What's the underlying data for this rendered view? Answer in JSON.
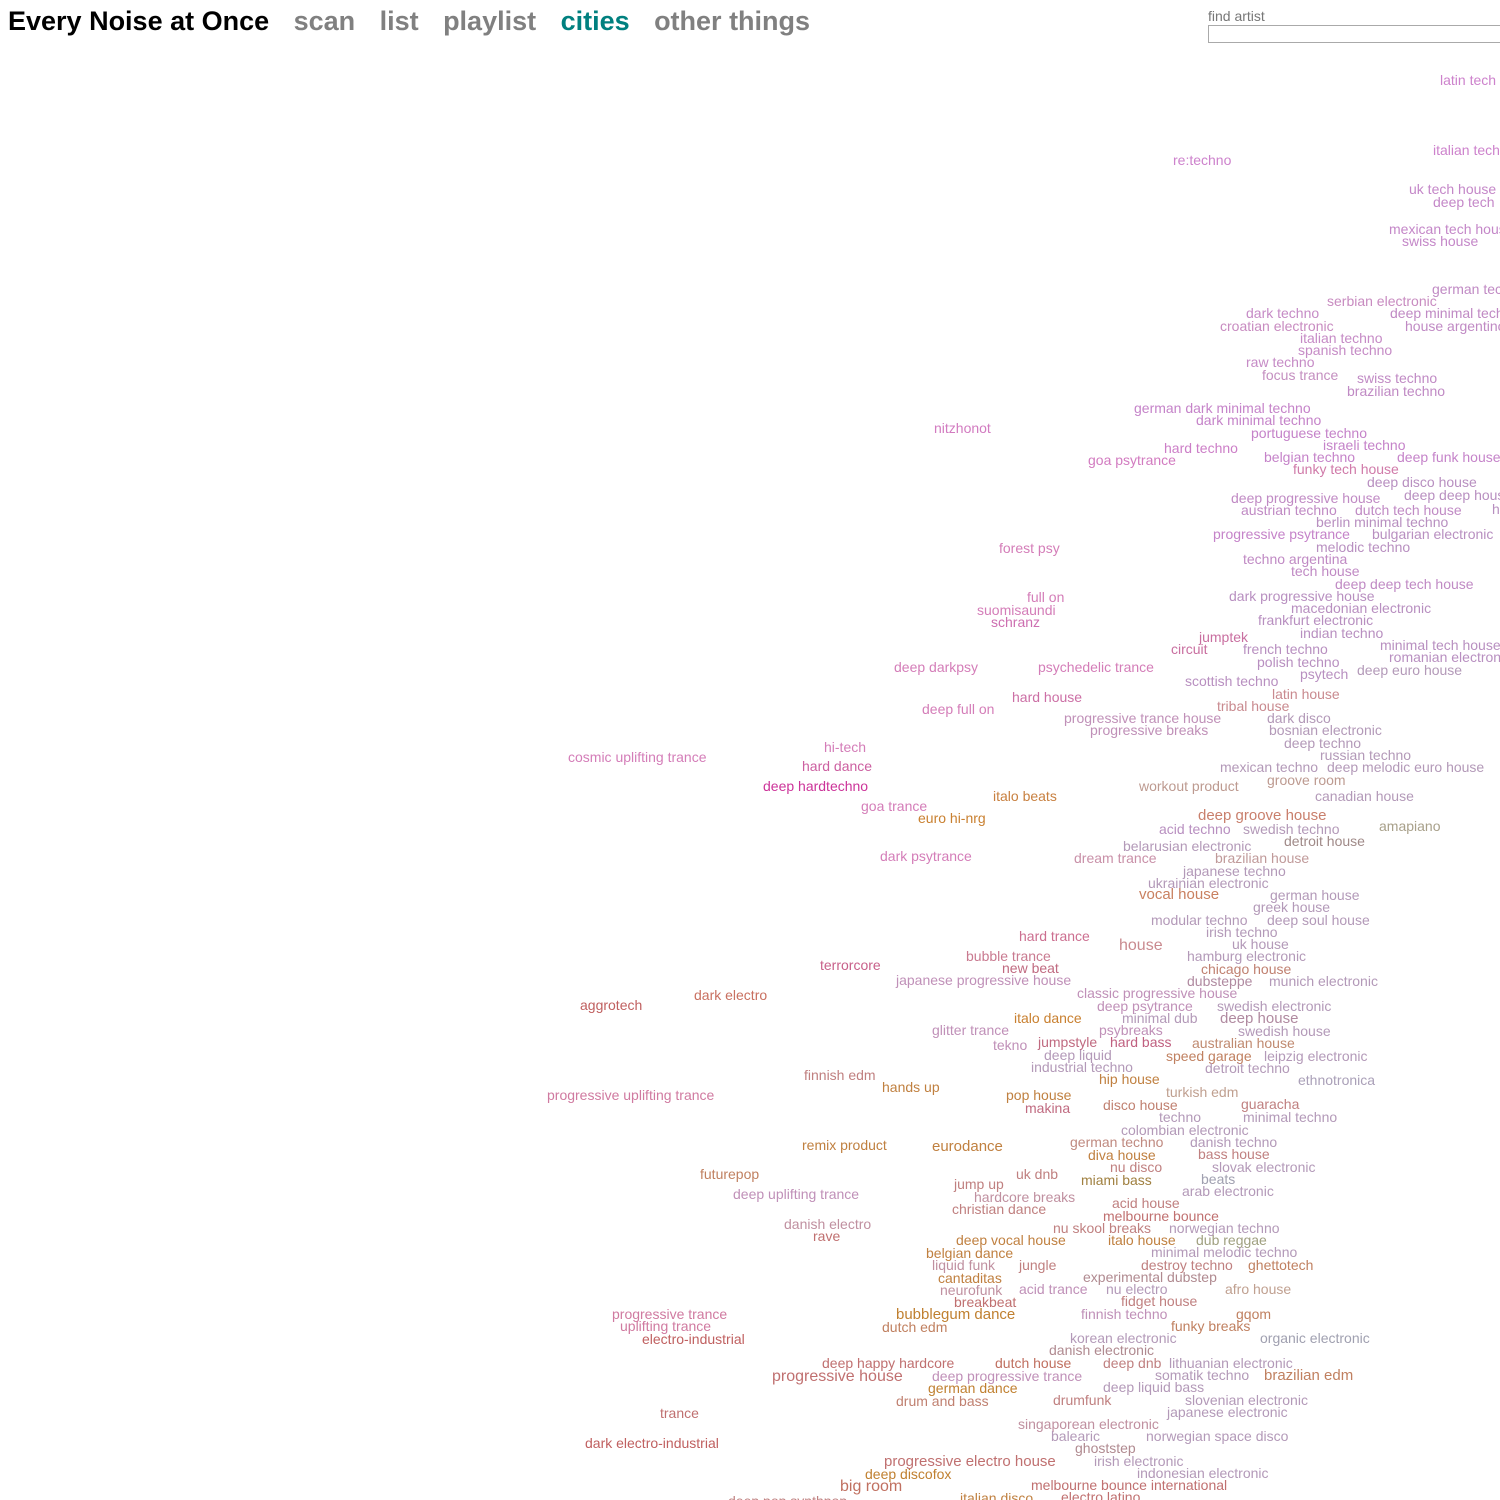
{
  "header": {
    "brand": "Every Noise at Once",
    "nav": [
      {
        "label": "scan",
        "active": false
      },
      {
        "label": "list",
        "active": false
      },
      {
        "label": "playlist",
        "active": false
      },
      {
        "label": "cities",
        "active": true
      },
      {
        "label": "other things",
        "active": false
      }
    ],
    "search": {
      "label": "find artist",
      "value": ""
    }
  },
  "genres": [
    {
      "name": "latin tech",
      "color": "#cd82cc"
    },
    {
      "name": "italian tech",
      "color": "#cd82cc"
    },
    {
      "name": "re:techno",
      "color": "#cd82cc"
    },
    {
      "name": "uk tech house",
      "color": "#c487c8"
    },
    {
      "name": "deep tech",
      "color": "#c487c8"
    },
    {
      "name": "mexican tech house",
      "color": "#c487c8"
    },
    {
      "name": "swiss house",
      "color": "#c487c8"
    },
    {
      "name": "german tec",
      "color": "#c08ac4"
    },
    {
      "name": "serbian electronic",
      "color": "#c88bc0"
    },
    {
      "name": "dark techno",
      "color": "#c68bc6"
    },
    {
      "name": "deep minimal tech",
      "color": "#c08ac4"
    },
    {
      "name": "croatian electronic",
      "color": "#c88bc0"
    },
    {
      "name": "house argentino",
      "color": "#c08ac4"
    },
    {
      "name": "italian techno",
      "color": "#c68bc6"
    },
    {
      "name": "spanish techno",
      "color": "#c68bc6"
    },
    {
      "name": "raw techno",
      "color": "#c68bc6"
    },
    {
      "name": "focus trance",
      "color": "#c48fc0"
    },
    {
      "name": "swiss techno",
      "color": "#c08ac4"
    },
    {
      "name": "brazilian techno",
      "color": "#c08ac4"
    },
    {
      "name": "nitzhonot",
      "color": "#d27bc0"
    },
    {
      "name": "german dark minimal techno",
      "color": "#c583c9"
    },
    {
      "name": "dark minimal techno",
      "color": "#c583c9"
    },
    {
      "name": "portuguese techno",
      "color": "#c583c9"
    },
    {
      "name": "hard techno",
      "color": "#cc7ec7"
    },
    {
      "name": "israeli techno",
      "color": "#c583c9"
    },
    {
      "name": "goa psytrance",
      "color": "#d27bc0"
    },
    {
      "name": "belgian techno",
      "color": "#c583c9"
    },
    {
      "name": "deep funk house",
      "color": "#c583c9"
    },
    {
      "name": "funky tech house",
      "color": "#d07aa9"
    },
    {
      "name": "deep disco house",
      "color": "#b88fc0"
    },
    {
      "name": "deep progressive house",
      "color": "#c08ac4"
    },
    {
      "name": "deep deep house",
      "color": "#b88fc0"
    },
    {
      "name": "austrian techno",
      "color": "#c08ac4"
    },
    {
      "name": "dutch tech house",
      "color": "#c08ac4"
    },
    {
      "name": "h",
      "color": "#b88fc0"
    },
    {
      "name": "berlin minimal techno",
      "color": "#b88fc0"
    },
    {
      "name": "progressive psytrance",
      "color": "#c583c9"
    },
    {
      "name": "bulgarian electronic",
      "color": "#b88fc0"
    },
    {
      "name": "melodic techno",
      "color": "#b88fc0"
    },
    {
      "name": "forest psy",
      "color": "#d47db8"
    },
    {
      "name": "techno argentina",
      "color": "#c08ac4"
    },
    {
      "name": "tech house",
      "color": "#c08ac4"
    },
    {
      "name": "deep deep tech house",
      "color": "#c08ac4"
    },
    {
      "name": "full on",
      "color": "#d47db8"
    },
    {
      "name": "dark progressive house",
      "color": "#b88fc0"
    },
    {
      "name": "suomisaundi",
      "color": "#d47db8"
    },
    {
      "name": "macedonian electronic",
      "color": "#b88fc0"
    },
    {
      "name": "schranz",
      "color": "#cd6eb0"
    },
    {
      "name": "frankfurt electronic",
      "color": "#b88fc0"
    },
    {
      "name": "indian techno",
      "color": "#b88fc0"
    },
    {
      "name": "jumptek",
      "color": "#c96fa0"
    },
    {
      "name": "minimal tech house",
      "color": "#b88fc0"
    },
    {
      "name": "circuit",
      "color": "#c96fa0"
    },
    {
      "name": "french techno",
      "color": "#b88fc0"
    },
    {
      "name": "romanian electronic",
      "color": "#b88fc0"
    },
    {
      "name": "polish techno",
      "color": "#b88fc0"
    },
    {
      "name": "deep darkpsy",
      "color": "#d47db8"
    },
    {
      "name": "psychedelic trance",
      "color": "#d47db8"
    },
    {
      "name": "psytech",
      "color": "#b88fc0"
    },
    {
      "name": "deep euro house",
      "color": "#b399b8"
    },
    {
      "name": "scottish techno",
      "color": "#b88fc0"
    },
    {
      "name": "hard house",
      "color": "#cc6fa5"
    },
    {
      "name": "latin house",
      "color": "#c98a8f"
    },
    {
      "name": "deep full on",
      "color": "#d47db8"
    },
    {
      "name": "tribal house",
      "color": "#c98a8f"
    },
    {
      "name": "progressive trance house",
      "color": "#c090b8"
    },
    {
      "name": "dark disco",
      "color": "#b399b8"
    },
    {
      "name": "progressive breaks",
      "color": "#c090b8"
    },
    {
      "name": "bosnian electronic",
      "color": "#b399b8"
    },
    {
      "name": "hi-tech",
      "color": "#d47db8"
    },
    {
      "name": "deep techno",
      "color": "#b399b8"
    },
    {
      "name": "cosmic uplifting trance",
      "color": "#d47db8"
    },
    {
      "name": "russian techno",
      "color": "#b399b8"
    },
    {
      "name": "hard dance",
      "color": "#cc5fa0"
    },
    {
      "name": "mexican techno",
      "color": "#b399b8"
    },
    {
      "name": "deep melodic euro house",
      "color": "#b399b8"
    },
    {
      "name": "groove room",
      "color": "#bd9a90"
    },
    {
      "name": "deep hardtechno",
      "color": "#cc3399"
    },
    {
      "name": "workout product",
      "color": "#bd9a90"
    },
    {
      "name": "italo beats",
      "color": "#c88040"
    },
    {
      "name": "canadian house",
      "color": "#b399b8"
    },
    {
      "name": "goa trance",
      "color": "#d47db8"
    },
    {
      "name": "deep groove house",
      "color": "#c97f6c"
    },
    {
      "name": "euro hi-nrg",
      "color": "#c98030"
    },
    {
      "name": "acid techno",
      "color": "#b88fc0"
    },
    {
      "name": "swedish techno",
      "color": "#b399b8"
    },
    {
      "name": "amapiano",
      "color": "#a8a08a"
    },
    {
      "name": "detroit house",
      "color": "#a08a88"
    },
    {
      "name": "belarusian electronic",
      "color": "#b399b8"
    },
    {
      "name": "dark psytrance",
      "color": "#d47db8"
    },
    {
      "name": "dream trance",
      "color": "#c990a8"
    },
    {
      "name": "brazilian house",
      "color": "#c09a9a"
    },
    {
      "name": "japanese techno",
      "color": "#b399b8"
    },
    {
      "name": "ukrainian electronic",
      "color": "#b399b8"
    },
    {
      "name": "vocal house",
      "color": "#c98060"
    },
    {
      "name": "german house",
      "color": "#b399b8"
    },
    {
      "name": "greek house",
      "color": "#b399b8"
    },
    {
      "name": "modular techno",
      "color": "#b399b8"
    },
    {
      "name": "deep soul house",
      "color": "#b399b8"
    },
    {
      "name": "irish techno",
      "color": "#b399b8"
    },
    {
      "name": "hard trance",
      "color": "#cc6f90"
    },
    {
      "name": "house",
      "color": "#c98a8f"
    },
    {
      "name": "uk house",
      "color": "#b399b8"
    },
    {
      "name": "bubble trance",
      "color": "#c97a90"
    },
    {
      "name": "hamburg electronic",
      "color": "#b399b8"
    },
    {
      "name": "terrorcore",
      "color": "#c8608a"
    },
    {
      "name": "new beat",
      "color": "#c06a80"
    },
    {
      "name": "chicago house",
      "color": "#c08070"
    },
    {
      "name": "japanese progressive house",
      "color": "#c090b8"
    },
    {
      "name": "dubsteppe",
      "color": "#b08aa0"
    },
    {
      "name": "munich electronic",
      "color": "#b399b8"
    },
    {
      "name": "dark electro",
      "color": "#c97060"
    },
    {
      "name": "classic progressive house",
      "color": "#c090b8"
    },
    {
      "name": "aggrotech",
      "color": "#c06060"
    },
    {
      "name": "deep psytrance",
      "color": "#c090b8"
    },
    {
      "name": "swedish electronic",
      "color": "#b399b8"
    },
    {
      "name": "italo dance",
      "color": "#c98030"
    },
    {
      "name": "minimal dub",
      "color": "#b399b8"
    },
    {
      "name": "deep house",
      "color": "#b08aa0"
    },
    {
      "name": "glitter trance",
      "color": "#c090b8"
    },
    {
      "name": "psybreaks",
      "color": "#c090b8"
    },
    {
      "name": "swedish house",
      "color": "#b399b8"
    },
    {
      "name": "jumpstyle",
      "color": "#c06a80"
    },
    {
      "name": "hard bass",
      "color": "#c06080"
    },
    {
      "name": "australian house",
      "color": "#c08a70"
    },
    {
      "name": "tekno",
      "color": "#c090b8"
    },
    {
      "name": "deep liquid",
      "color": "#b399b8"
    },
    {
      "name": "speed garage",
      "color": "#c08060"
    },
    {
      "name": "leipzig electronic",
      "color": "#b399b8"
    },
    {
      "name": "industrial techno",
      "color": "#b399b8"
    },
    {
      "name": "detroit techno",
      "color": "#b399b8"
    },
    {
      "name": "finnish edm",
      "color": "#c08080"
    },
    {
      "name": "hip house",
      "color": "#c08040"
    },
    {
      "name": "ethnotronica",
      "color": "#aaa0b8"
    },
    {
      "name": "hands up",
      "color": "#c08040"
    },
    {
      "name": "turkish edm",
      "color": "#c0a090"
    },
    {
      "name": "progressive uplifting trance",
      "color": "#d07aa0"
    },
    {
      "name": "pop house",
      "color": "#c08040"
    },
    {
      "name": "guaracha",
      "color": "#c08080"
    },
    {
      "name": "disco house",
      "color": "#c08070"
    },
    {
      "name": "makina",
      "color": "#c06a80"
    },
    {
      "name": "techno",
      "color": "#b399b8"
    },
    {
      "name": "minimal techno",
      "color": "#b399b8"
    },
    {
      "name": "colombian electronic",
      "color": "#b399b8"
    },
    {
      "name": "remix product",
      "color": "#c08040"
    },
    {
      "name": "eurodance",
      "color": "#c08040"
    },
    {
      "name": "german techno",
      "color": "#c08a80"
    },
    {
      "name": "danish techno",
      "color": "#b399b8"
    },
    {
      "name": "diva house",
      "color": "#c08040"
    },
    {
      "name": "bass house",
      "color": "#c08080"
    },
    {
      "name": "nu disco",
      "color": "#c08080"
    },
    {
      "name": "futurepop",
      "color": "#c08060"
    },
    {
      "name": "uk dnb",
      "color": "#c08080"
    },
    {
      "name": "slovak electronic",
      "color": "#b399b8"
    },
    {
      "name": "miami bass",
      "color": "#a08040"
    },
    {
      "name": "beats",
      "color": "#a0a0b0"
    },
    {
      "name": "jump up",
      "color": "#c08080"
    },
    {
      "name": "deep uplifting trance",
      "color": "#c090b8"
    },
    {
      "name": "arab electronic",
      "color": "#b399b8"
    },
    {
      "name": "hardcore breaks",
      "color": "#c090a0"
    },
    {
      "name": "acid house",
      "color": "#c08080"
    },
    {
      "name": "christian dance",
      "color": "#c08080"
    },
    {
      "name": "melbourne bounce",
      "color": "#c07070"
    },
    {
      "name": "danish electro",
      "color": "#c090a0"
    },
    {
      "name": "nu skool breaks",
      "color": "#c08080"
    },
    {
      "name": "norwegian techno",
      "color": "#b399b8"
    },
    {
      "name": "rave",
      "color": "#c07070"
    },
    {
      "name": "deep vocal house",
      "color": "#c08040"
    },
    {
      "name": "italo house",
      "color": "#c08040"
    },
    {
      "name": "dub reggae",
      "color": "#a0a080"
    },
    {
      "name": "belgian dance",
      "color": "#c08040"
    },
    {
      "name": "minimal melodic techno",
      "color": "#b399b8"
    },
    {
      "name": "liquid funk",
      "color": "#c090a0"
    },
    {
      "name": "jungle",
      "color": "#c08080"
    },
    {
      "name": "destroy techno",
      "color": "#c08080"
    },
    {
      "name": "ghettotech",
      "color": "#c08060"
    },
    {
      "name": "cantaditas",
      "color": "#c08040"
    },
    {
      "name": "experimental dubstep",
      "color": "#b08a90"
    },
    {
      "name": "neurofunk",
      "color": "#c090a0"
    },
    {
      "name": "acid trance",
      "color": "#c090b8"
    },
    {
      "name": "nu electro",
      "color": "#b399b8"
    },
    {
      "name": "afro house",
      "color": "#c0a090"
    },
    {
      "name": "breakbeat",
      "color": "#c07070"
    },
    {
      "name": "fidget house",
      "color": "#c08080"
    },
    {
      "name": "progressive trance",
      "color": "#d07aa0"
    },
    {
      "name": "bubblegum dance",
      "color": "#c08030"
    },
    {
      "name": "finnish techno",
      "color": "#c090b8"
    },
    {
      "name": "gqom",
      "color": "#c08060"
    },
    {
      "name": "uplifting trance",
      "color": "#d07aa0"
    },
    {
      "name": "dutch edm",
      "color": "#c08060"
    },
    {
      "name": "funky breaks",
      "color": "#c08060"
    },
    {
      "name": "electro-industrial",
      "color": "#c06060"
    },
    {
      "name": "korean electronic",
      "color": "#b399b8"
    },
    {
      "name": "organic electronic",
      "color": "#a0a0b0"
    },
    {
      "name": "danish electronic",
      "color": "#b08a90"
    },
    {
      "name": "deep happy hardcore",
      "color": "#c07070"
    },
    {
      "name": "dutch house",
      "color": "#c07060"
    },
    {
      "name": "deep dnb",
      "color": "#c08080"
    },
    {
      "name": "lithuanian electronic",
      "color": "#b399b8"
    },
    {
      "name": "progressive house",
      "color": "#c07070"
    },
    {
      "name": "deep progressive trance",
      "color": "#c090b8"
    },
    {
      "name": "somatik techno",
      "color": "#b399b8"
    },
    {
      "name": "brazilian edm",
      "color": "#c08060"
    },
    {
      "name": "german dance",
      "color": "#c08030"
    },
    {
      "name": "deep liquid bass",
      "color": "#b399b8"
    },
    {
      "name": "drum and bass",
      "color": "#c08070"
    },
    {
      "name": "drumfunk",
      "color": "#c08080"
    },
    {
      "name": "slovenian electronic",
      "color": "#b399b8"
    },
    {
      "name": "trance",
      "color": "#c07070"
    },
    {
      "name": "japanese electronic",
      "color": "#b399b8"
    },
    {
      "name": "singaporean electronic",
      "color": "#c090a0"
    },
    {
      "name": "dark electro-industrial",
      "color": "#c06060"
    },
    {
      "name": "balearic",
      "color": "#b399b8"
    },
    {
      "name": "norwegian space disco",
      "color": "#b399b8"
    },
    {
      "name": "ghoststep",
      "color": "#b08a90"
    },
    {
      "name": "progressive electro house",
      "color": "#c07070"
    },
    {
      "name": "irish electronic",
      "color": "#b399b8"
    },
    {
      "name": "deep discofox",
      "color": "#c08030"
    },
    {
      "name": "indonesian electronic",
      "color": "#b399b8"
    },
    {
      "name": "big room",
      "color": "#c07060"
    },
    {
      "name": "melbourne bounce international",
      "color": "#c07070"
    },
    {
      "name": "deep pop synthpop",
      "color": "#c08080"
    },
    {
      "name": "italian disco",
      "color": "#c08040"
    },
    {
      "name": "electro latino",
      "color": "#c07070"
    }
  ]
}
